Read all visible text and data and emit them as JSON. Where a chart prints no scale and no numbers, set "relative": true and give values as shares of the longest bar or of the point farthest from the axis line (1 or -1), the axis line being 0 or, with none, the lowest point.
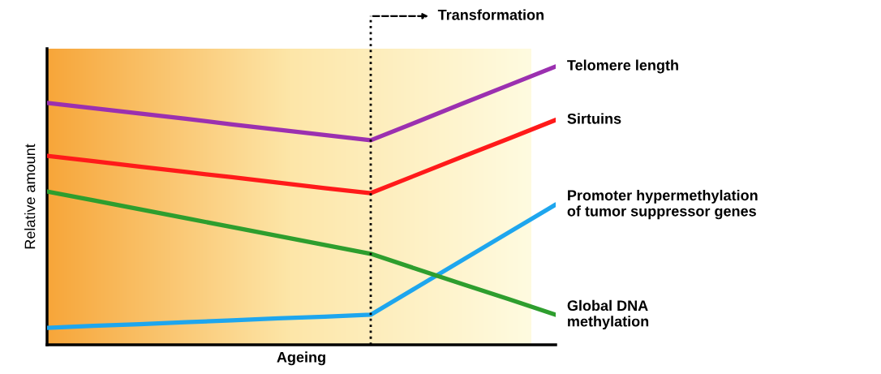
{
  "chart_data": {
    "type": "line",
    "relative": true,
    "xlabel": "Ageing",
    "ylabel": "Relative amount",
    "categories": [
      null,
      null,
      null,
      null,
      null,
      null,
      null,
      null,
      null,
      null,
      null,
      null
    ],
    "tick_labels": false,
    "legend": false,
    "marker": "none",
    "line_style": "solid",
    "annotations": [
      "Transformation"
    ],
    "series": [
      {
        "name": "Telomere length",
        "color": "#9b30b0",
        "values": [
          0.869,
          0.85,
          0.831,
          0.812,
          0.792,
          0.773,
          0.754,
          0.735,
          0.801,
          0.868,
          0.934,
          1.0
        ]
      },
      {
        "name": "Sirtuins",
        "color": "#ff1a1a",
        "values": [
          0.679,
          0.66,
          0.64,
          0.621,
          0.602,
          0.583,
          0.563,
          0.545,
          0.611,
          0.677,
          0.742,
          0.808
        ]
      },
      {
        "name": "Promoter hypermethylation\nof tumor suppressor genes",
        "color": "#1ea6ee",
        "values": [
          0.061,
          0.068,
          0.074,
          0.081,
          0.088,
          0.095,
          0.101,
          0.108,
          0.207,
          0.306,
          0.405,
          0.504
        ]
      },
      {
        "name": "Global DNA\nmethylation",
        "color": "#2e9e2e",
        "values": [
          0.551,
          0.519,
          0.487,
          0.455,
          0.423,
          0.391,
          0.359,
          0.327,
          0.272,
          0.217,
          0.163,
          0.108
        ]
      }
    ]
  }
}
